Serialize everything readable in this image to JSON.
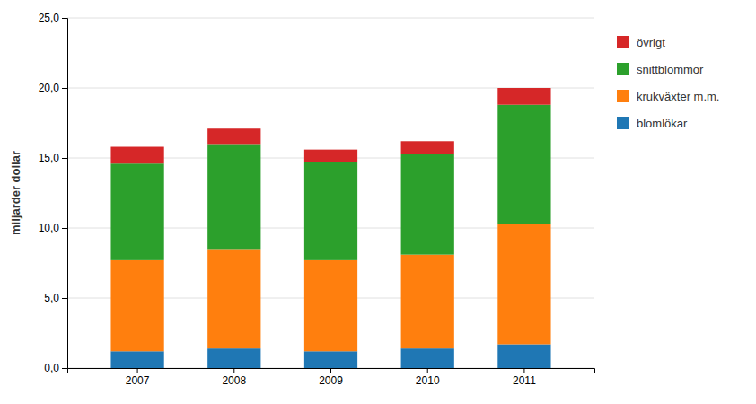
{
  "chart_data": {
    "type": "bar",
    "stacked": true,
    "categories": [
      "2007",
      "2008",
      "2009",
      "2010",
      "2011"
    ],
    "series": [
      {
        "name": "blomlökar",
        "values": [
          1.2,
          1.4,
          1.2,
          1.4,
          1.7
        ]
      },
      {
        "name": "krukväxter m.m.",
        "values": [
          6.5,
          7.1,
          6.5,
          6.7,
          8.6
        ]
      },
      {
        "name": "snittblommor",
        "values": [
          6.9,
          7.5,
          7.0,
          7.2,
          8.5
        ]
      },
      {
        "name": "övrigt",
        "values": [
          1.2,
          1.1,
          0.9,
          0.9,
          1.2
        ]
      }
    ],
    "ylabel": "miljarder dollar",
    "ylim": [
      0,
      25
    ],
    "yticks": [
      {
        "value": 0,
        "label": "0,0"
      },
      {
        "value": 5,
        "label": "5,0"
      },
      {
        "value": 10,
        "label": "10,0"
      },
      {
        "value": 15,
        "label": "15,0"
      },
      {
        "value": 20,
        "label": "20,0"
      },
      {
        "value": 25,
        "label": "25,0"
      }
    ],
    "grid": true,
    "legend": "right"
  }
}
